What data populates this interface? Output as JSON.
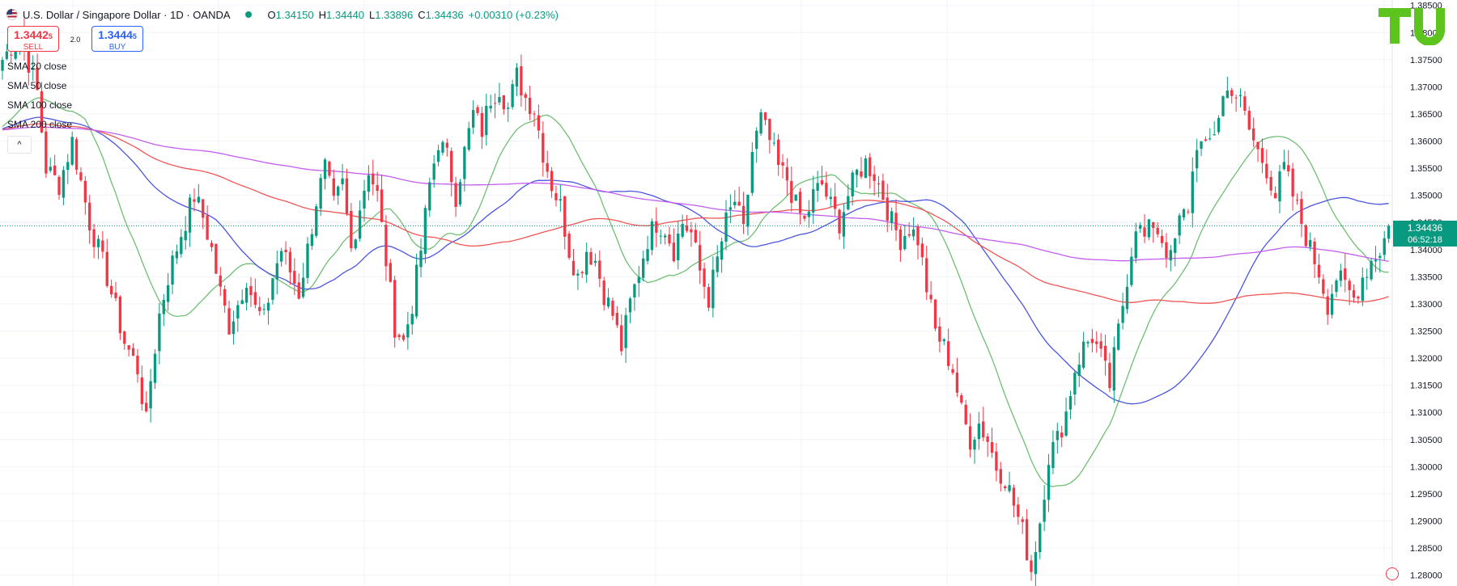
{
  "header": {
    "symbol": "U.S. Dollar / Singapore Dollar",
    "interval": "1D",
    "exchange": "OANDA",
    "open_label": "O",
    "open": "1.34150",
    "high_label": "H",
    "high": "1.34440",
    "low_label": "L",
    "low": "1.33896",
    "close_label": "C",
    "close": "1.34436",
    "change": "+0.00310 (+0.23%)"
  },
  "trade": {
    "sell_price": "1.3442",
    "sell_price_small": "5",
    "sell_label": "SELL",
    "buy_price": "1.3444",
    "buy_price_small": "5",
    "buy_label": "BUY",
    "spread": "2.0"
  },
  "legend": [
    "SMA 20 close",
    "SMA 50 close",
    "SMA 100 close",
    "SMA 200 close"
  ],
  "collapse_glyph": "^",
  "price_tag": {
    "price": "1.34436",
    "countdown": "06:52:18"
  },
  "colors": {
    "up": "#089981",
    "down": "#f23645",
    "sma20": "#6fbf73",
    "sma50": "#4b55e0",
    "sma100": "#f05555",
    "sma200": "#c35ef0",
    "grid": "#f0f3fa",
    "axis_text": "#131722",
    "logo": "#5cc41d"
  },
  "icons": [
    "us-flag-icon",
    "status-dot-icon",
    "chevron-up-icon",
    "tu-logo-icon",
    "flag-icon"
  ],
  "chart_data": {
    "type": "candlestick",
    "ylim": [
      1.278,
      1.386
    ],
    "y_ticks": [
      "1.38500",
      "1.38000",
      "1.37500",
      "1.37000",
      "1.36500",
      "1.36000",
      "1.35500",
      "1.35000",
      "1.34500",
      "1.34000",
      "1.33500",
      "1.33000",
      "1.32500",
      "1.32000",
      "1.31500",
      "1.31000",
      "1.30500",
      "1.30000",
      "1.29500",
      "1.29000",
      "1.28500",
      "1.28000"
    ],
    "current_price": 1.34436,
    "close_path": [
      [
        0,
        1.375
      ],
      [
        4,
        1.38
      ],
      [
        8,
        1.369
      ],
      [
        10,
        1.355
      ],
      [
        13,
        1.352
      ],
      [
        16,
        1.36
      ],
      [
        20,
        1.345
      ],
      [
        24,
        1.335
      ],
      [
        28,
        1.323
      ],
      [
        31,
        1.318
      ],
      [
        33,
        1.308
      ],
      [
        34,
        1.316
      ],
      [
        36,
        1.328
      ],
      [
        38,
        1.335
      ],
      [
        41,
        1.343
      ],
      [
        44,
        1.35
      ],
      [
        46,
        1.346
      ],
      [
        48,
        1.34
      ],
      [
        50,
        1.332
      ],
      [
        52,
        1.326
      ],
      [
        54,
        1.33
      ],
      [
        56,
        1.335
      ],
      [
        58,
        1.329
      ],
      [
        60,
        1.327
      ],
      [
        62,
        1.335
      ],
      [
        64,
        1.34
      ],
      [
        66,
        1.336
      ],
      [
        68,
        1.332
      ],
      [
        70,
        1.34
      ],
      [
        72,
        1.349
      ],
      [
        74,
        1.355
      ],
      [
        76,
        1.348
      ],
      [
        78,
        1.352
      ],
      [
        80,
        1.34
      ],
      [
        82,
        1.348
      ],
      [
        84,
        1.355
      ],
      [
        86,
        1.35
      ],
      [
        88,
        1.338
      ],
      [
        90,
        1.326
      ],
      [
        92,
        1.323
      ],
      [
        94,
        1.33
      ],
      [
        96,
        1.34
      ],
      [
        98,
        1.352
      ],
      [
        100,
        1.36
      ],
      [
        102,
        1.357
      ],
      [
        104,
        1.35
      ],
      [
        106,
        1.358
      ],
      [
        108,
        1.365
      ],
      [
        110,
        1.362
      ],
      [
        112,
        1.368
      ],
      [
        114,
        1.37
      ],
      [
        116,
        1.366
      ],
      [
        118,
        1.372
      ],
      [
        120,
        1.368
      ],
      [
        122,
        1.366
      ],
      [
        124,
        1.358
      ],
      [
        126,
        1.352
      ],
      [
        128,
        1.348
      ],
      [
        130,
        1.34
      ],
      [
        132,
        1.335
      ],
      [
        134,
        1.34
      ],
      [
        136,
        1.338
      ],
      [
        138,
        1.332
      ],
      [
        140,
        1.328
      ],
      [
        142,
        1.322
      ],
      [
        144,
        1.33
      ],
      [
        146,
        1.336
      ],
      [
        148,
        1.342
      ],
      [
        150,
        1.345
      ],
      [
        152,
        1.344
      ],
      [
        154,
        1.34
      ],
      [
        156,
        1.345
      ],
      [
        158,
        1.343
      ],
      [
        160,
        1.336
      ],
      [
        162,
        1.331
      ],
      [
        164,
        1.338
      ],
      [
        166,
        1.345
      ],
      [
        168,
        1.349
      ],
      [
        170,
        1.343
      ],
      [
        172,
        1.358
      ],
      [
        174,
        1.364
      ],
      [
        176,
        1.36
      ],
      [
        178,
        1.355
      ],
      [
        180,
        1.353
      ],
      [
        182,
        1.348
      ],
      [
        184,
        1.345
      ],
      [
        186,
        1.35
      ],
      [
        188,
        1.352
      ],
      [
        190,
        1.348
      ],
      [
        192,
        1.345
      ],
      [
        194,
        1.35
      ],
      [
        196,
        1.354
      ],
      [
        198,
        1.356
      ],
      [
        200,
        1.354
      ],
      [
        202,
        1.35
      ],
      [
        204,
        1.345
      ],
      [
        206,
        1.342
      ],
      [
        208,
        1.344
      ],
      [
        210,
        1.342
      ],
      [
        212,
        1.333
      ],
      [
        214,
        1.325
      ],
      [
        216,
        1.322
      ],
      [
        218,
        1.318
      ],
      [
        220,
        1.31
      ],
      [
        222,
        1.305
      ],
      [
        224,
        1.308
      ],
      [
        226,
        1.305
      ],
      [
        228,
        1.3
      ],
      [
        230,
        1.298
      ],
      [
        232,
        1.293
      ],
      [
        234,
        1.288
      ],
      [
        236,
        1.281
      ],
      [
        238,
        1.29
      ],
      [
        240,
        1.302
      ],
      [
        242,
        1.305
      ],
      [
        244,
        1.31
      ],
      [
        246,
        1.318
      ],
      [
        248,
        1.322
      ],
      [
        250,
        1.324
      ],
      [
        252,
        1.32
      ],
      [
        254,
        1.315
      ],
      [
        256,
        1.325
      ],
      [
        258,
        1.335
      ],
      [
        260,
        1.345
      ],
      [
        262,
        1.342
      ],
      [
        264,
        1.345
      ],
      [
        266,
        1.342
      ],
      [
        268,
        1.338
      ],
      [
        270,
        1.345
      ],
      [
        272,
        1.348
      ],
      [
        274,
        1.36
      ],
      [
        276,
        1.358
      ],
      [
        278,
        1.362
      ],
      [
        280,
        1.368
      ],
      [
        282,
        1.37
      ],
      [
        284,
        1.367
      ],
      [
        286,
        1.362
      ],
      [
        288,
        1.358
      ],
      [
        290,
        1.355
      ],
      [
        292,
        1.35
      ],
      [
        294,
        1.355
      ],
      [
        296,
        1.35
      ],
      [
        298,
        1.345
      ],
      [
        300,
        1.34
      ],
      [
        302,
        1.336
      ],
      [
        304,
        1.33
      ],
      [
        306,
        1.335
      ],
      [
        308,
        1.333
      ],
      [
        310,
        1.331
      ],
      [
        312,
        1.335
      ],
      [
        314,
        1.338
      ],
      [
        316,
        1.34
      ],
      [
        318,
        1.344
      ]
    ],
    "num_bars": 319
  }
}
